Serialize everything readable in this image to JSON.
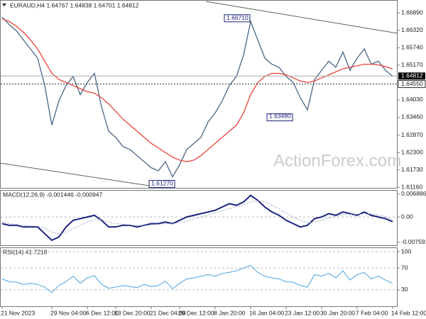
{
  "chart_data": {
    "type": "line",
    "title": "EURAUD,H4  1.64767 1.64838 1.64701 1.64812",
    "watermark": "ActionForex.com",
    "categories": [
      "21 Nov 2023",
      null,
      null,
      null,
      null,
      null,
      null,
      "29 Nov 04:00",
      null,
      null,
      null,
      null,
      "6 Dec 12:00",
      null,
      null,
      null,
      "13 Dec 20:00",
      null,
      null,
      null,
      null,
      "21 Dec 04:00",
      null,
      null,
      null,
      "29 Dec 12:00",
      null,
      null,
      null,
      null,
      "8 Jan 20:00",
      null,
      null,
      null,
      null,
      "16 Jan 04:00",
      null,
      null,
      null,
      null,
      "23 Jan 12:00",
      null,
      null,
      null,
      null,
      "30 Jan 20:00",
      null,
      null,
      null,
      null,
      "7 Feb 04:00",
      null,
      null,
      null,
      null,
      "14 Feb 12:00"
    ],
    "series": [
      {
        "name": "EURAUD",
        "color": "#4a6784",
        "values": [
          1.6675,
          1.665,
          1.663,
          1.66,
          1.657,
          1.654,
          1.645,
          1.632,
          1.64,
          1.645,
          1.648,
          1.642,
          1.646,
          1.649,
          1.638,
          1.63,
          1.628,
          1.625,
          1.624,
          1.622,
          1.62,
          1.618,
          1.617,
          1.62,
          1.615,
          1.619,
          1.624,
          1.626,
          1.628,
          1.633,
          1.636,
          1.64,
          1.645,
          1.648,
          1.655,
          1.666,
          1.66,
          1.654,
          1.652,
          1.651,
          1.648,
          1.646,
          1.641,
          1.637,
          1.647,
          1.65,
          1.653,
          1.651,
          1.656,
          1.65,
          1.654,
          1.657,
          1.652,
          1.653,
          1.65,
          1.6481
        ]
      },
      {
        "name": "MA",
        "color": "#e8423a",
        "values": [
          1.667,
          1.666,
          1.6645,
          1.6625,
          1.66,
          1.657,
          1.653,
          1.649,
          1.647,
          1.646,
          1.645,
          1.644,
          1.643,
          1.6425,
          1.641,
          1.639,
          1.6365,
          1.634,
          1.632,
          1.63,
          1.628,
          1.626,
          1.6245,
          1.623,
          1.6215,
          1.6205,
          1.62,
          1.6205,
          1.622,
          1.624,
          1.626,
          1.628,
          1.63,
          1.632,
          1.636,
          1.642,
          1.646,
          1.648,
          1.649,
          1.649,
          1.6485,
          1.6475,
          1.6465,
          1.646,
          1.6465,
          1.6475,
          1.6485,
          1.6495,
          1.6505,
          1.651,
          1.6515,
          1.652,
          1.652,
          1.6518,
          1.6512,
          1.6505
        ]
      }
    ],
    "ylim": [
      1.6114,
      1.6731
    ],
    "yticks": [
      {
        "value": 1.6689,
        "label": "1.66890"
      },
      {
        "value": 1.6632,
        "label": "1.66320"
      },
      {
        "value": 1.6574,
        "label": "1.65740"
      },
      {
        "value": 1.6517,
        "label": "1.65170"
      },
      {
        "value": 1.6403,
        "label": "1.64030"
      },
      {
        "value": 1.6346,
        "label": "1.63460"
      },
      {
        "value": 1.6287,
        "label": "1.62870"
      },
      {
        "value": 1.623,
        "label": "1.62300"
      },
      {
        "value": 1.6173,
        "label": "1.61730"
      },
      {
        "value": 1.6116,
        "label": "1.61160"
      }
    ],
    "last_price": {
      "value": 1.64812,
      "label": "1.64812"
    },
    "level": {
      "value": 1.6455,
      "label": "1.64550"
    },
    "annotations": [
      {
        "value": 1.6671,
        "label": "1.66710"
      },
      {
        "value": 1.6348,
        "label": "1.63480"
      },
      {
        "value": 1.6127,
        "label": "1.61270"
      }
    ],
    "macd": {
      "title": "MACD(12,26,9) -0.001446 -0.000947",
      "ylim": [
        -0.0085,
        0.0079
      ],
      "yticks": [
        0.006886,
        {
          "value": 0,
          "label": "0.00"
        },
        -0.007591
      ],
      "series": [
        {
          "name": "MACD",
          "color": "#1a237e",
          "values": [
            -0.002,
            -0.0025,
            -0.0025,
            -0.003,
            -0.003,
            -0.003,
            -0.005,
            -0.007,
            -0.006,
            -0.003,
            -0.001,
            -0.0005,
            0,
            0.0005,
            -0.001,
            -0.003,
            -0.003,
            -0.0025,
            -0.0025,
            -0.003,
            -0.0025,
            -0.002,
            -0.002,
            -0.0015,
            -0.002,
            -0.001,
            0,
            0.0005,
            0.001,
            0.0015,
            0.002,
            0.003,
            0.004,
            0.0035,
            0.0045,
            0.0065,
            0.005,
            0.003,
            0.0015,
            0.0005,
            -0.001,
            -0.002,
            -0.003,
            -0.0025,
            -0.0005,
            0,
            0.001,
            0.0005,
            0.0015,
            0.001,
            0.0005,
            0.0015,
            0.0005,
            0,
            -0.0005,
            -0.0014
          ]
        },
        {
          "name": "Signal",
          "color": "#9aa5c8",
          "values": [
            -0.0015,
            -0.002,
            -0.0022,
            -0.0025,
            -0.0027,
            -0.0028,
            -0.0033,
            -0.0045,
            -0.005,
            -0.0045,
            -0.0035,
            -0.0025,
            -0.0015,
            -0.0008,
            -0.0008,
            -0.0015,
            -0.002,
            -0.0022,
            -0.0024,
            -0.0026,
            -0.0026,
            -0.0024,
            -0.0022,
            -0.002,
            -0.002,
            -0.0017,
            -0.0012,
            -0.0006,
            0,
            0.0006,
            0.0012,
            0.0018,
            0.0026,
            0.003,
            0.0036,
            0.0045,
            0.005,
            0.0045,
            0.0035,
            0.0025,
            0.0012,
            0,
            -0.001,
            -0.0018,
            -0.0015,
            -0.001,
            -0.0003,
            0.0002,
            0.0007,
            0.0009,
            0.0008,
            0.001,
            0.0009,
            0.0006,
            0.0002,
            -0.0009
          ]
        }
      ]
    },
    "rsi": {
      "title": "RSI(14) 41.7218",
      "ylim": [
        0,
        106.5
      ],
      "yticks": [
        100,
        70,
        30
      ],
      "color": "#4aa3df",
      "values": [
        50,
        45,
        44,
        40,
        42,
        40,
        35,
        25,
        38,
        45,
        55,
        42,
        52,
        56,
        40,
        33,
        35,
        38,
        36,
        34,
        40,
        36,
        38,
        46,
        32,
        42,
        50,
        52,
        55,
        58,
        55,
        60,
        62,
        65,
        70,
        75,
        62,
        55,
        52,
        50,
        45,
        44,
        38,
        35,
        58,
        55,
        60,
        52,
        65,
        48,
        58,
        62,
        50,
        55,
        48,
        42
      ]
    }
  }
}
